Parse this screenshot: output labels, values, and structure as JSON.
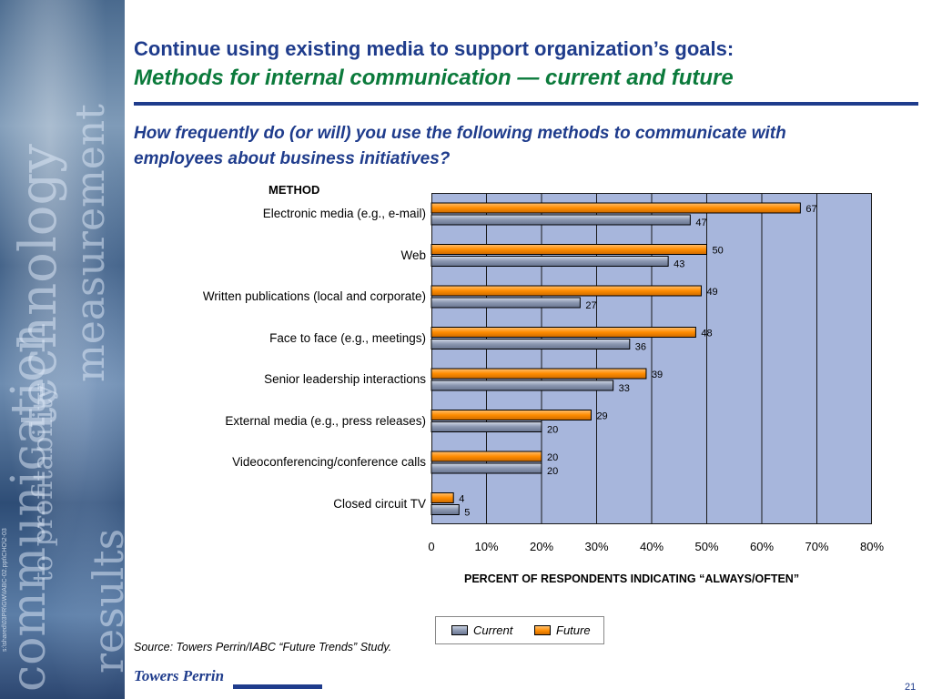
{
  "header": {
    "title": "Continue using existing media to support organization’s goals:",
    "subtitle": "Methods for internal communication — current and future"
  },
  "question": "How frequently do (or will) you use the following methods to communicate with employees about business initiatives?",
  "side_panel": {
    "file_code": "s:\\shared\\03PR\\GW\\IABC-02.ppt\\CHO\\2-03",
    "background_words": [
      "technology",
      "measurement",
      "to profitability",
      "results",
      "communication"
    ]
  },
  "footer": {
    "source": "Source: Towers Perrin/IABC “Future Trends” Study.",
    "logo_text": "Towers Perrin",
    "page_number": "21"
  },
  "chart_data": {
    "type": "bar",
    "orientation": "horizontal",
    "category_axis_label": "METHOD",
    "xlabel": "PERCENT OF RESPONDENTS INDICATING “ALWAYS/OFTEN”",
    "categories": [
      "Electronic media (e.g., e-mail)",
      "Web",
      "Written publications (local and corporate)",
      "Face to face (e.g., meetings)",
      "Senior leadership interactions",
      "External media (e.g., press releases)",
      "Videoconferencing/conference calls",
      "Closed circuit TV"
    ],
    "series": [
      {
        "name": "Future",
        "values": [
          67,
          50,
          49,
          48,
          39,
          29,
          20,
          4
        ],
        "color": "#ff8c00"
      },
      {
        "name": "Current",
        "values": [
          47,
          43,
          27,
          36,
          33,
          20,
          20,
          5
        ],
        "color": "#8a96b0"
      }
    ],
    "xlim": [
      0,
      80
    ],
    "x_ticks": [
      "0",
      "10%",
      "20%",
      "30%",
      "40%",
      "50%",
      "60%",
      "70%",
      "80%"
    ],
    "x_tick_values": [
      0,
      10,
      20,
      30,
      40,
      50,
      60,
      70,
      80
    ],
    "grid": true,
    "plot_background": "#a7b6dc",
    "legend": {
      "position": "bottom",
      "items": [
        "Current",
        "Future"
      ]
    }
  }
}
